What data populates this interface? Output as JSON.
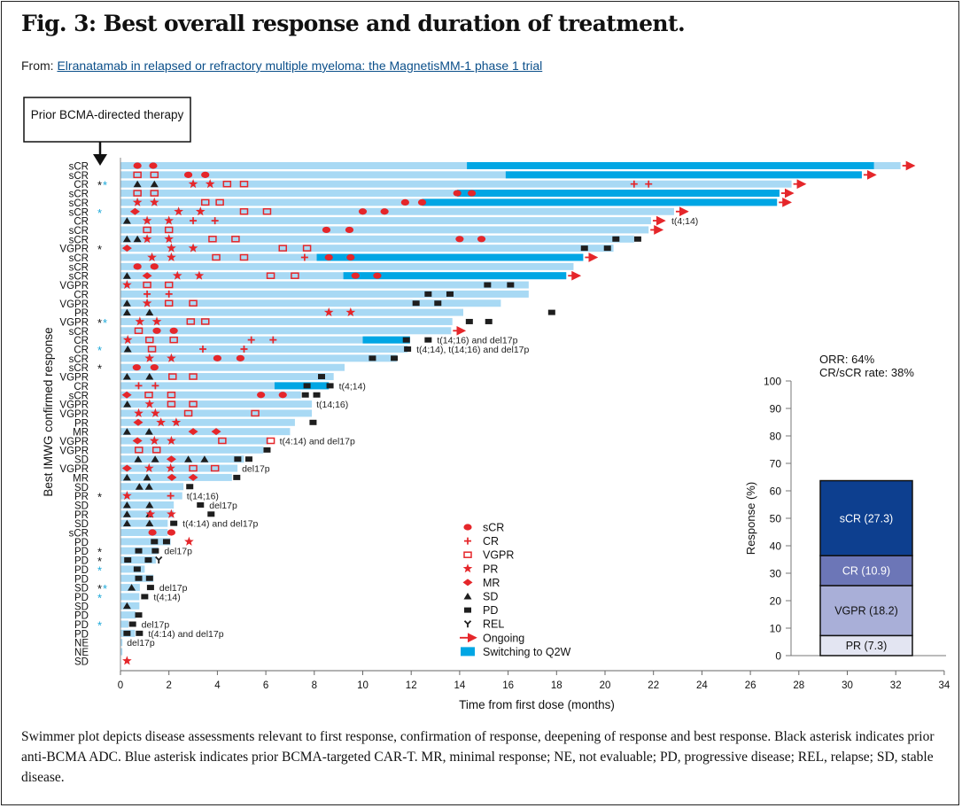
{
  "header": {
    "title": "Fig. 3: Best overall response and duration of treatment.",
    "from_label": "From:",
    "article_link": "Elranatamab in relapsed or refractory multiple myeloma: the MagnetisMM-1 phase 1 trial"
  },
  "caption": "Swimmer plot depicts disease assessments relevant to first response, confirmation of response, deepening of response and best response. Black asterisk indicates prior anti-BCMA ADC. Blue asterisk indicates prior BCMA-targeted CAR-T. MR, minimal response; NE, not evaluable; PD, progressive disease; REL, relapse; SD, stable disease.",
  "colors": {
    "bar": "#a8d9f4",
    "switch": "#00a6e4",
    "marker_red": "#e5262a",
    "marker_black": "#1e1e1e",
    "asterisk_black": "#111111",
    "asterisk_blue": "#1aa7d8",
    "PR": "#e3e5f2",
    "VGPR": "#a9afd8",
    "CR": "#6c76b7",
    "sCR": "#0d3f8f"
  },
  "chart_data": [
    {
      "type": "swimmer",
      "callout": "Prior BCMA-directed therapy",
      "xlabel": "Time from first dose (months)",
      "ylabel": "Best IMWG confirmed response",
      "xlim": [
        0,
        34
      ],
      "xticks": [
        0,
        2,
        4,
        6,
        8,
        10,
        12,
        14,
        16,
        18,
        20,
        22,
        24,
        26,
        28,
        30,
        32,
        34
      ],
      "legend": [
        {
          "key": "sCR",
          "label": "sCR"
        },
        {
          "key": "CR",
          "label": "CR"
        },
        {
          "key": "VGPR",
          "label": "VGPR"
        },
        {
          "key": "PR",
          "label": "PR"
        },
        {
          "key": "MR",
          "label": "MR"
        },
        {
          "key": "SD",
          "label": "SD"
        },
        {
          "key": "PD",
          "label": "PD"
        },
        {
          "key": "REL",
          "label": "REL"
        },
        {
          "key": "ongoing",
          "label": "Ongoing"
        },
        {
          "key": "switch",
          "label": "Switching to Q2W"
        }
      ],
      "rows": [
        {
          "label": "sCR",
          "end": 32.2,
          "ongoing": true,
          "switch": [
            14.3,
            31.1
          ],
          "m": {
            "sCR": [
              0.7,
              1.35
            ]
          }
        },
        {
          "label": "sCR",
          "end": 30.6,
          "ongoing": true,
          "switch": [
            15.9,
            30.6
          ],
          "m": {
            "VGPR": [
              0.7,
              1.4
            ],
            "sCR": [
              2.8,
              3.5
            ]
          }
        },
        {
          "label": "CR",
          "ast": [
            "black",
            "blue"
          ],
          "end": 27.7,
          "ongoing": true,
          "m": {
            "SD": [
              0.7,
              1.4
            ],
            "PR": [
              3.0,
              3.7
            ],
            "VGPR": [
              4.4,
              5.1
            ],
            "CR": [
              21.2,
              21.8
            ]
          }
        },
        {
          "label": "sCR",
          "end": 27.2,
          "ongoing": true,
          "switch": [
            13.9,
            27.2
          ],
          "m": {
            "VGPR": [
              0.7,
              1.4
            ],
            "sCR": [
              13.9,
              14.5
            ]
          }
        },
        {
          "label": "sCR",
          "end": 27.1,
          "ongoing": true,
          "switch": [
            12.45,
            27.1
          ],
          "m": {
            "PR": [
              0.7,
              1.4
            ],
            "VGPR": [
              3.5,
              4.1
            ],
            "sCR": [
              11.75,
              12.45
            ]
          }
        },
        {
          "label": "sCR",
          "ast": [
            "blue"
          ],
          "end": 22.85,
          "ongoing": true,
          "m": {
            "MR": [
              0.6
            ],
            "PR": [
              2.4,
              3.3
            ],
            "VGPR": [
              5.1,
              6.05
            ],
            "sCR": [
              10.0,
              10.9
            ]
          }
        },
        {
          "label": "CR",
          "end": 21.9,
          "ongoing": true,
          "note": "t(4;14)",
          "m": {
            "SD": [
              0.27
            ],
            "PR": [
              1.1,
              2.0
            ],
            "CR": [
              3.0,
              3.9
            ]
          }
        },
        {
          "label": "sCR",
          "end": 21.8,
          "ongoing": true,
          "m": {
            "VGPR": [
              1.1,
              2.0
            ],
            "sCR": [
              8.5,
              9.45
            ]
          }
        },
        {
          "label": "sCR",
          "end": 21.2,
          "m": {
            "SD": [
              0.27,
              0.7
            ],
            "PR": [
              1.1,
              2.0
            ],
            "VGPR": [
              3.8,
              4.75
            ],
            "sCR": [
              14.0,
              14.9
            ],
            "PD": [
              20.45,
              21.35
            ]
          }
        },
        {
          "label": "VGPR",
          "ast": [
            "black"
          ],
          "end": 20.35,
          "m": {
            "MR": [
              0.27
            ],
            "PR": [
              2.1,
              3.0
            ],
            "VGPR": [
              6.7,
              7.7
            ],
            "PD": [
              19.15,
              20.1
            ]
          }
        },
        {
          "label": "sCR",
          "end": 19.1,
          "ongoing": true,
          "switch": [
            8.1,
            19.1
          ],
          "m": {
            "PR": [
              1.3,
              2.1
            ],
            "VGPR": [
              3.95,
              5.1
            ],
            "CR": [
              7.6
            ],
            "sCR": [
              8.6,
              9.5
            ]
          }
        },
        {
          "label": "sCR",
          "end": 18.7,
          "m": {
            "sCR": [
              0.7,
              1.4
            ]
          }
        },
        {
          "label": "sCR",
          "end": 18.4,
          "ongoing": true,
          "switch": [
            9.2,
            18.4
          ],
          "m": {
            "SD": [
              0.27
            ],
            "MR": [
              1.1
            ],
            "PR": [
              2.35,
              3.25
            ],
            "VGPR": [
              6.2,
              7.2
            ],
            "sCR": [
              9.7,
              10.6
            ]
          }
        },
        {
          "label": "VGPR",
          "end": 16.85,
          "m": {
            "PR": [
              0.27
            ],
            "VGPR": [
              1.1,
              2.0
            ],
            "PD": [
              15.15,
              16.1
            ]
          }
        },
        {
          "label": "CR",
          "end": 16.85,
          "m": {
            "CR": [
              1.1,
              2.0
            ],
            "PD": [
              12.7,
              13.6
            ]
          }
        },
        {
          "label": "VGPR",
          "end": 15.7,
          "m": {
            "SD": [
              0.27
            ],
            "PR": [
              1.1
            ],
            "VGPR": [
              2.0,
              3.0
            ],
            "PD": [
              12.2,
              13.1
            ]
          }
        },
        {
          "label": "PR",
          "end": 14.15,
          "m": {
            "SD": [
              0.27,
              1.2
            ],
            "PR": [
              8.6,
              9.5
            ],
            "PD": [
              17.8
            ]
          }
        },
        {
          "label": "VGPR",
          "ast": [
            "black",
            "blue"
          ],
          "end": 13.7,
          "m": {
            "PR": [
              0.8,
              1.5
            ],
            "VGPR": [
              2.9,
              3.5
            ],
            "PD": [
              14.4,
              15.2
            ]
          }
        },
        {
          "label": "sCR",
          "end": 13.65,
          "ongoing": true,
          "m": {
            "VGPR": [
              0.75
            ],
            "sCR": [
              1.5,
              2.2
            ]
          }
        },
        {
          "label": "CR",
          "end": 11.95,
          "switch": [
            10.0,
            11.95
          ],
          "note": "t(14;16) and del17p",
          "m": {
            "PR": [
              0.3
            ],
            "VGPR": [
              1.2,
              2.2
            ],
            "CR": [
              5.4,
              6.3
            ],
            "PD": [
              11.8,
              12.7
            ]
          }
        },
        {
          "label": "CR",
          "ast": [
            "blue"
          ],
          "end": 11.85,
          "note": "t(4;14), t(14;16) and del17p",
          "m": {
            "SD": [
              0.3
            ],
            "VGPR": [
              1.3
            ],
            "CR": [
              3.4,
              5.1
            ],
            "PD": [
              11.85
            ]
          }
        },
        {
          "label": "sCR",
          "end": 11.4,
          "m": {
            "PR": [
              1.2,
              2.1
            ],
            "sCR": [
              4.0,
              4.95
            ],
            "PD": [
              10.4,
              11.3
            ]
          }
        },
        {
          "label": "sCR",
          "ast": [
            "black"
          ],
          "end": 9.25,
          "m": {
            "sCR": [
              0.67,
              1.4
            ]
          }
        },
        {
          "label": "VGPR",
          "end": 8.8,
          "m": {
            "SD": [
              0.27,
              1.2
            ],
            "VGPR": [
              2.15,
              3.0
            ],
            "PD": [
              8.3
            ]
          }
        },
        {
          "label": "CR",
          "end": 8.6,
          "switch": [
            6.36,
            8.6
          ],
          "note": "t(4;14)",
          "m": {
            "CR": [
              0.75,
              1.44
            ],
            "PD": [
              7.7,
              8.65
            ]
          }
        },
        {
          "label": "sCR",
          "end": 7.45,
          "m": {
            "MR": [
              0.26
            ],
            "VGPR": [
              1.17,
              2.1
            ],
            "sCR": [
              5.8,
              6.7
            ],
            "PD": [
              7.63,
              8.1
            ]
          }
        },
        {
          "label": "VGPR",
          "end": 7.9,
          "note": "t(14;16)",
          "m": {
            "SD": [
              0.28
            ],
            "PR": [
              1.2
            ],
            "VGPR": [
              2.1,
              3.0
            ]
          }
        },
        {
          "label": "VGPR",
          "end": 7.9,
          "m": {
            "PR": [
              0.75,
              1.44
            ],
            "VGPR": [
              2.8,
              5.56
            ]
          }
        },
        {
          "label": "PR",
          "end": 7.2,
          "m": {
            "MR": [
              0.73
            ],
            "PR": [
              1.67,
              2.3
            ],
            "PD": [
              7.95
            ]
          }
        },
        {
          "label": "MR",
          "end": 7.0,
          "m": {
            "SD": [
              0.27,
              1.18
            ],
            "MR": [
              3.0,
              3.95
            ]
          }
        },
        {
          "label": "VGPR",
          "end": 6.1,
          "note": "t(4:14) and del17p",
          "m": {
            "MR": [
              0.7
            ],
            "PR": [
              1.4,
              2.1
            ],
            "VGPR": [
              4.2,
              6.2
            ]
          }
        },
        {
          "label": "VGPR",
          "end": 5.9,
          "m": {
            "VGPR": [
              0.76,
              1.49
            ],
            "PD": [
              6.05
            ]
          }
        },
        {
          "label": "SD",
          "end": 5.1,
          "m": {
            "SD": [
              0.73,
              1.43,
              2.8,
              3.47
            ],
            "MR": [
              2.1
            ],
            "PD": [
              4.84,
              5.3
            ]
          }
        },
        {
          "label": "VGPR",
          "end": 4.83,
          "note": "del17p",
          "m": {
            "MR": [
              0.27
            ],
            "PR": [
              1.18,
              2.07
            ],
            "VGPR": [
              3.0,
              3.9
            ]
          }
        },
        {
          "label": "MR",
          "end": 4.6,
          "m": {
            "SD": [
              0.27,
              1.1
            ],
            "MR": [
              2.12,
              3.0
            ],
            "PD": [
              4.8
            ]
          }
        },
        {
          "label": "SD",
          "end": 2.6,
          "m": {
            "SD": [
              0.78,
              1.18
            ],
            "PD": [
              2.86
            ]
          }
        },
        {
          "label": "PR",
          "ast": [
            "black"
          ],
          "end": 2.55,
          "note": "t(14;16)",
          "m": {
            "PR": [
              0.27
            ],
            "CR": [
              2.07
            ]
          }
        },
        {
          "label": "SD",
          "end": 2.2,
          "note": "del17p",
          "m": {
            "SD": [
              0.27,
              1.2
            ],
            "PD": [
              3.3
            ]
          }
        },
        {
          "label": "PR",
          "end": 2.2,
          "m": {
            "SD": [
              0.27,
              1.2
            ],
            "PR": [
              1.24,
              2.1
            ],
            "PD": [
              3.74
            ]
          }
        },
        {
          "label": "SD",
          "end": 1.95,
          "note": "t(4:14) and del17p",
          "m": {
            "SD": [
              0.27,
              1.2
            ],
            "PD": [
              2.2
            ]
          }
        },
        {
          "label": "sCR",
          "end": 1.95,
          "m": {
            "sCR": [
              1.32,
              2.1
            ]
          }
        },
        {
          "label": "PD",
          "end": 2.07,
          "m": {
            "PD": [
              1.4,
              1.9
            ],
            "PR": [
              2.83
            ]
          }
        },
        {
          "label": "PD",
          "ast": [
            "black"
          ],
          "end": 1.55,
          "note": "del17p",
          "m": {
            "PD": [
              0.75,
              1.44
            ]
          }
        },
        {
          "label": "PD",
          "ast": [
            "black"
          ],
          "end": 1.46,
          "m": {
            "PD": [
              0.3,
              1.15
            ],
            "REL": [
              1.58
            ]
          }
        },
        {
          "label": "PD",
          "ast": [
            "blue"
          ],
          "end": 1.0,
          "m": {
            "PD": [
              0.69
            ]
          }
        },
        {
          "label": "PD",
          "end": 1.36,
          "m": {
            "PD": [
              0.75,
              1.2
            ]
          }
        },
        {
          "label": "SD",
          "ast": [
            "black",
            "blue"
          ],
          "end": 0.8,
          "note": "del17p",
          "m": {
            "SD": [
              0.46
            ],
            "PD": [
              1.24
            ]
          }
        },
        {
          "label": "PD",
          "ast": [
            "blue"
          ],
          "end": 0.78,
          "note": "t(4;14)",
          "m": {
            "PD": [
              1.0
            ]
          }
        },
        {
          "label": "SD",
          "end": 0.78,
          "m": {
            "SD": [
              0.27
            ]
          }
        },
        {
          "label": "PD",
          "end": 0.63,
          "m": {
            "PD": [
              0.75
            ]
          }
        },
        {
          "label": "PD",
          "ast": [
            "blue"
          ],
          "end": 0.33,
          "note": "del17p",
          "m": {
            "PD": [
              0.5
            ]
          }
        },
        {
          "label": "PD",
          "end": 0.6,
          "note": "t(4:14) and del17p",
          "m": {
            "PD": [
              0.27,
              0.78
            ]
          }
        },
        {
          "label": "NE",
          "end": 0.08,
          "note": "del17p",
          "m": {}
        },
        {
          "label": "NE",
          "end": 0.08,
          "m": {}
        },
        {
          "label": "SD",
          "end": 0,
          "m": {
            "PR": [
              0.27
            ]
          }
        }
      ]
    },
    {
      "type": "bar",
      "stacked": true,
      "ylabel": "Response (%)",
      "ylim": [
        0,
        100
      ],
      "yticks": [
        0,
        10,
        20,
        30,
        40,
        50,
        60,
        70,
        80,
        90,
        100
      ],
      "annotations": [
        "ORR: 64%",
        "CR/sCR rate: 38%"
      ],
      "segments": [
        {
          "key": "PR",
          "label": "PR (7.3)",
          "value": 7.3
        },
        {
          "key": "VGPR",
          "label": "VGPR (18.2)",
          "value": 18.2
        },
        {
          "key": "CR",
          "label": "CR (10.9)",
          "value": 10.9
        },
        {
          "key": "sCR",
          "label": "sCR (27.3)",
          "value": 27.3
        }
      ]
    }
  ]
}
